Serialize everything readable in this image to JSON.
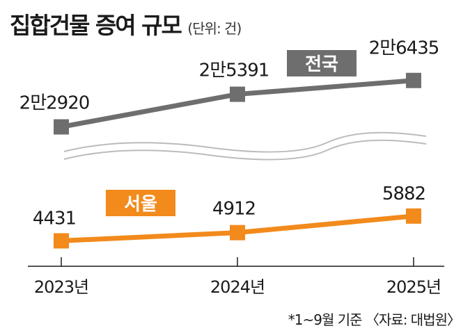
{
  "title": "집합건물 증여 규모",
  "unit": "(단위: 건)",
  "note": "*1~9월 기준 〈자료: 대법원〉",
  "colors": {
    "national": "#6e6e6e",
    "seoul": "#f28a1c",
    "axis": "#1a1a1a",
    "break": "#bbbbbb"
  },
  "chart_data": {
    "type": "line",
    "categories": [
      "2023년",
      "2024년",
      "2025년"
    ],
    "series": [
      {
        "name": "전국",
        "values": [
          22920,
          25391,
          26435
        ],
        "labels": [
          "2만2920",
          "2만5391",
          "2만6435"
        ],
        "color": "#6e6e6e"
      },
      {
        "name": "서울",
        "values": [
          4431,
          4912,
          5882
        ],
        "labels": [
          "4431",
          "4912",
          "5882"
        ],
        "color": "#f28a1c"
      }
    ],
    "axis_break": true,
    "legend": "inline-labels"
  }
}
